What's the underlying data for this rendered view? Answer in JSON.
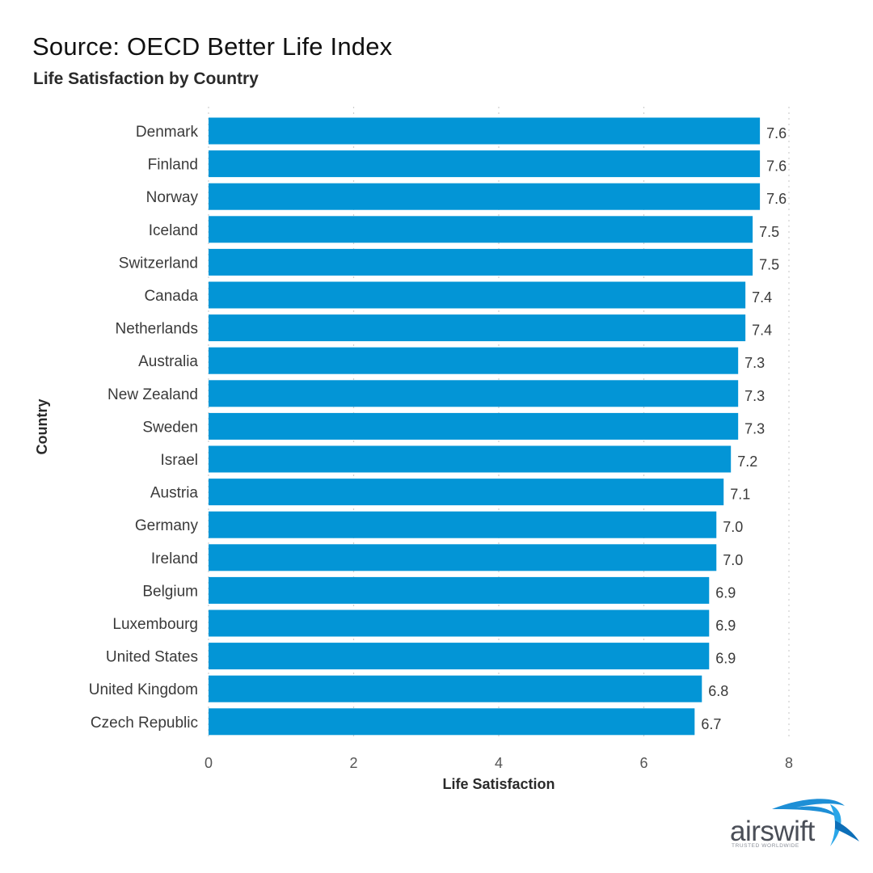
{
  "header": {
    "source": "Source: OECD Better Life Index",
    "subtitle": "Life Satisfaction by Country"
  },
  "brand": {
    "name": "airswift",
    "tagline": "TRUSTED WORLDWIDE",
    "primary_color": "#4a4e57",
    "accent_color": "#1e8fd6"
  },
  "chart_data": {
    "type": "bar",
    "orientation": "horizontal",
    "title": "Life Satisfaction by Country",
    "xlabel": "Life Satisfaction",
    "ylabel": "Country",
    "xlim": [
      0,
      8
    ],
    "xticks": [
      0,
      2,
      4,
      6,
      8
    ],
    "grid": true,
    "bar_color": "#0395d6",
    "categories": [
      "Denmark",
      "Finland",
      "Norway",
      "Iceland",
      "Switzerland",
      "Canada",
      "Netherlands",
      "Australia",
      "New Zealand",
      "Sweden",
      "Israel",
      "Austria",
      "Germany",
      "Ireland",
      "Belgium",
      "Luxembourg",
      "United States",
      "United Kingdom",
      "Czech Republic"
    ],
    "values": [
      7.6,
      7.6,
      7.6,
      7.5,
      7.5,
      7.4,
      7.4,
      7.3,
      7.3,
      7.3,
      7.2,
      7.1,
      7.0,
      7.0,
      6.9,
      6.9,
      6.9,
      6.8,
      6.7
    ],
    "value_labels": [
      "7.6",
      "7.6",
      "7.6",
      "7.5",
      "7.5",
      "7.4",
      "7.4",
      "7.3",
      "7.3",
      "7.3",
      "7.2",
      "7.1",
      "7.0",
      "7.0",
      "6.9",
      "6.9",
      "6.9",
      "6.8",
      "6.7"
    ]
  }
}
